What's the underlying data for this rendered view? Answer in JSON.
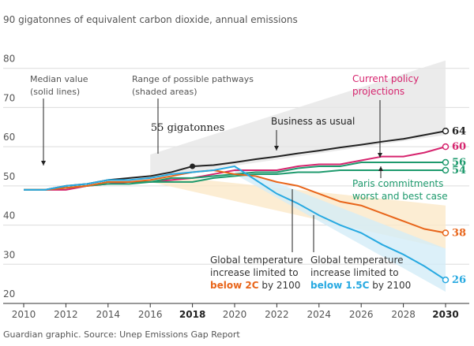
{
  "chart_data": {
    "type": "line",
    "footer": "Guardian graphic. Source: Unep Emissions Gap Report",
    "x": [
      2010,
      2011,
      2012,
      2013,
      2014,
      2015,
      2016,
      2017,
      2018,
      2019,
      2020,
      2021,
      2022,
      2023,
      2024,
      2025,
      2026,
      2027,
      2028,
      2029,
      2030
    ],
    "xlim": [
      2010,
      2030
    ],
    "xticks": [
      2010,
      2012,
      2014,
      2016,
      2018,
      2020,
      2022,
      2024,
      2026,
      2028,
      2030
    ],
    "bold_xticks": [
      2018,
      2030
    ],
    "ylim": [
      20,
      90
    ],
    "yticks": [
      20,
      30,
      40,
      50,
      60,
      70,
      80,
      {
        "value": 90,
        "label": "90 gigatonnes of equivalent carbon dioxide, annual emissions"
      }
    ],
    "grid": true,
    "annotations": [
      {
        "lines": [
          "Median value",
          "(solid lines)"
        ]
      },
      {
        "lines": [
          "Range of possible pathways",
          "(shaded areas)"
        ]
      }
    ],
    "bands": [
      {
        "color": "#e6e6e6",
        "x": [
          2016,
          2030
        ],
        "lower": [
          52,
          63
        ],
        "upper": [
          58,
          82
        ]
      },
      {
        "color": "#fbe9c8",
        "x": [
          2016,
          2030
        ],
        "lower": [
          51,
          34
        ],
        "upper": [
          53,
          45
        ]
      },
      {
        "color": "#d3ecf7",
        "x": [
          2020,
          2030
        ],
        "lower": [
          53,
          23
        ],
        "upper": [
          55,
          34
        ]
      }
    ],
    "series": [
      {
        "name": "Business as usual",
        "color": "#222222",
        "values": [
          49,
          49,
          50,
          50.5,
          51.5,
          52,
          52.5,
          53.5,
          55,
          55.3,
          56,
          56.8,
          57.5,
          58.3,
          59,
          59.8,
          60.5,
          61.3,
          62,
          63,
          64
        ],
        "value_labels": [
          null,
          null,
          null,
          null,
          null,
          null,
          null,
          null,
          "55 gigatonnes",
          null,
          null,
          null,
          null,
          null,
          null,
          null,
          null,
          null,
          null,
          null,
          "64"
        ]
      },
      {
        "name": "Current policy projections",
        "label_lines": [
          "Current policy",
          "projections"
        ],
        "color": "#d6246e",
        "values": [
          49,
          49,
          49,
          50,
          50.5,
          51,
          51,
          51.5,
          52,
          53,
          54,
          54,
          54,
          55,
          55.5,
          55.5,
          56.5,
          57.5,
          57.5,
          58.5,
          60
        ]
      },
      {
        "name": "Paris commitments worst and best case",
        "label_lines": [
          "Paris commitments",
          "worst and best case"
        ],
        "color": "#1e9a6d",
        "values": [
          49,
          49,
          49.5,
          50,
          51,
          51,
          51,
          52,
          52,
          52.5,
          53,
          53.5,
          53.5,
          54.5,
          55,
          55,
          56,
          56,
          56,
          56,
          56
        ]
      },
      {
        "color": "#1e9a6d",
        "values": [
          49,
          49,
          49.5,
          50,
          50.5,
          50.5,
          51,
          51,
          51,
          52,
          52.5,
          53,
          53,
          53.5,
          53.5,
          54,
          54,
          54,
          54,
          54,
          54
        ]
      },
      {
        "name": "below 2C",
        "label_lines": [
          "Global temperature",
          "increase limited to"
        ],
        "label_end": " by 2100",
        "color": "#e8651a",
        "values": [
          49,
          49,
          49.5,
          50,
          51,
          51,
          51.5,
          52.5,
          53.5,
          54,
          53,
          52.5,
          51,
          50,
          48,
          46,
          45,
          43,
          41,
          39,
          38
        ]
      },
      {
        "name": "below 1.5C",
        "label_lines": [
          "Global temperature",
          "increase limited to"
        ],
        "label_end": " by 2100",
        "color": "#27a9e1",
        "values": [
          49,
          49,
          50,
          50.5,
          51.5,
          51.5,
          52,
          53,
          53.5,
          54,
          55,
          51.5,
          48,
          45.5,
          42.5,
          40,
          38,
          35,
          32.5,
          29.5,
          26
        ]
      }
    ]
  }
}
